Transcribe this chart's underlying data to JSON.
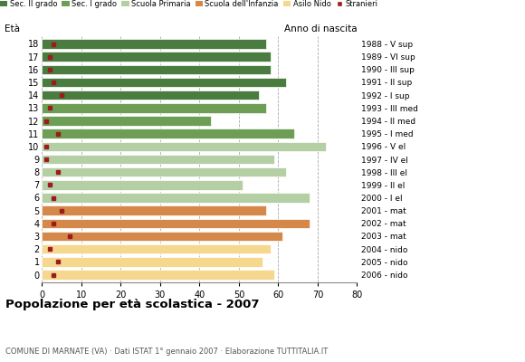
{
  "ages": [
    18,
    17,
    16,
    15,
    14,
    13,
    12,
    11,
    10,
    9,
    8,
    7,
    6,
    5,
    4,
    3,
    2,
    1,
    0
  ],
  "years": [
    "1988 - V sup",
    "1989 - VI sup",
    "1990 - III sup",
    "1991 - II sup",
    "1992 - I sup",
    "1993 - III med",
    "1994 - II med",
    "1995 - I med",
    "1996 - V el",
    "1997 - IV el",
    "1998 - III el",
    "1999 - II el",
    "2000 - I el",
    "2001 - mat",
    "2002 - mat",
    "2003 - mat",
    "2004 - nido",
    "2005 - nido",
    "2006 - nido"
  ],
  "bar_values": [
    57,
    58,
    58,
    62,
    55,
    57,
    43,
    64,
    72,
    59,
    62,
    51,
    68,
    57,
    68,
    61,
    58,
    56,
    59
  ],
  "stranieri": [
    3,
    2,
    2,
    3,
    5,
    2,
    1,
    4,
    1,
    1,
    4,
    2,
    3,
    5,
    3,
    7,
    2,
    4,
    3
  ],
  "categories": {
    "sec2": [
      18,
      17,
      16,
      15,
      14
    ],
    "sec1": [
      13,
      12,
      11
    ],
    "primaria": [
      10,
      9,
      8,
      7,
      6
    ],
    "infanzia": [
      5,
      4,
      3
    ],
    "nido": [
      2,
      1,
      0
    ]
  },
  "colors": {
    "sec2": "#4a7c3f",
    "sec1": "#6e9e55",
    "primaria": "#b5cfa5",
    "infanzia": "#d4894a",
    "nido": "#f5d78e",
    "stranieri": "#9b1c1c"
  },
  "legend_labels": [
    "Sec. II grado",
    "Sec. I grado",
    "Scuola Primaria",
    "Scuola dell'Infanzia",
    "Asilo Nido",
    "Stranieri"
  ],
  "ylabel_label": "Età",
  "title": "Popolazione per età scolastica - 2007",
  "subtitle": "COMUNE DI MARNATE (VA) · Dati ISTAT 1° gennaio 2007 · Elaborazione TUTTITALIA.IT",
  "right_label": "Anno di nascita",
  "xlim": [
    0,
    80
  ],
  "xticks": [
    0,
    10,
    20,
    30,
    40,
    50,
    60,
    70,
    80
  ],
  "bar_height": 0.75
}
